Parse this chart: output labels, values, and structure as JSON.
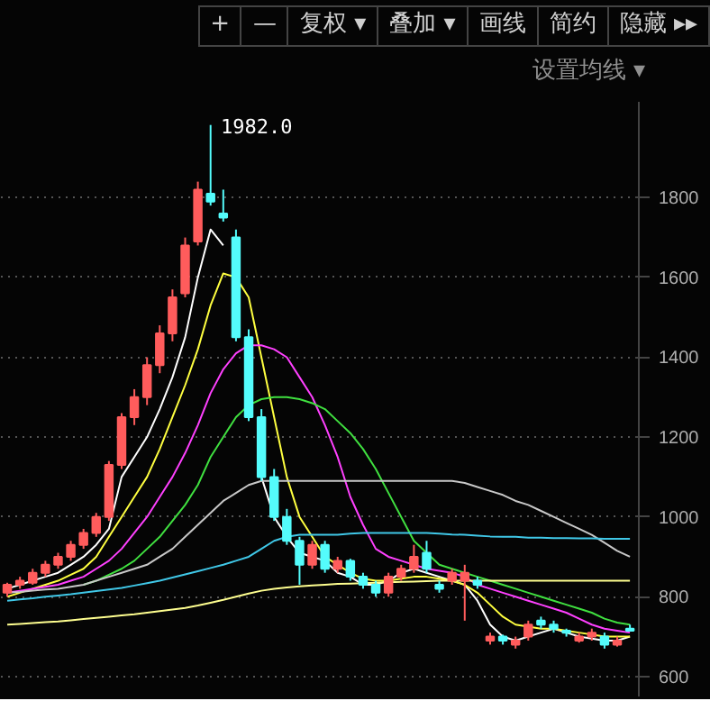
{
  "chart_data": {
    "type": "candlestick",
    "annotations": [
      "+",
      "—",
      "复权 ▾",
      "叠加 ▾",
      "画线",
      "简约",
      "隐藏 ▸▸",
      "设置均线 ▾",
      "1982.0"
    ],
    "categories": [
      null,
      null,
      null,
      null,
      null,
      null,
      null,
      null,
      null,
      null,
      null,
      null,
      null,
      null,
      null,
      null,
      null,
      null,
      null,
      null,
      null,
      null,
      null,
      null,
      null,
      null,
      null,
      null,
      null,
      null,
      null,
      null,
      null,
      null,
      null,
      null,
      null,
      null,
      null,
      null,
      null,
      null,
      null,
      null,
      null,
      null,
      null,
      null,
      null,
      null
    ],
    "ohlc": [
      [
        810,
        835,
        800,
        830
      ],
      [
        830,
        850,
        820,
        840
      ],
      [
        835,
        870,
        830,
        860
      ],
      [
        860,
        890,
        850,
        880
      ],
      [
        880,
        910,
        870,
        900
      ],
      [
        900,
        940,
        890,
        930
      ],
      [
        930,
        970,
        920,
        960
      ],
      [
        960,
        1010,
        950,
        1000
      ],
      [
        1000,
        1140,
        990,
        1130
      ],
      [
        1130,
        1260,
        1120,
        1250
      ],
      [
        1250,
        1320,
        1230,
        1300
      ],
      [
        1300,
        1400,
        1280,
        1380
      ],
      [
        1380,
        1480,
        1360,
        1460
      ],
      [
        1460,
        1570,
        1440,
        1550
      ],
      [
        1560,
        1700,
        1550,
        1680
      ],
      [
        1690,
        1840,
        1680,
        1820
      ],
      [
        1810,
        1982,
        1780,
        1790
      ],
      [
        1760,
        1820,
        1740,
        1750
      ],
      [
        1700,
        1720,
        1440,
        1450
      ],
      [
        1450,
        1470,
        1240,
        1250
      ],
      [
        1250,
        1270,
        1090,
        1100
      ],
      [
        1100,
        1120,
        990,
        1000
      ],
      [
        1000,
        1020,
        930,
        940
      ],
      [
        940,
        950,
        830,
        880
      ],
      [
        880,
        940,
        870,
        930
      ],
      [
        930,
        940,
        860,
        870
      ],
      [
        870,
        900,
        860,
        890
      ],
      [
        890,
        895,
        840,
        850
      ],
      [
        850,
        860,
        820,
        830
      ],
      [
        830,
        840,
        800,
        810
      ],
      [
        810,
        860,
        800,
        850
      ],
      [
        850,
        880,
        840,
        870
      ],
      [
        870,
        930,
        860,
        900
      ],
      [
        910,
        940,
        860,
        870
      ],
      [
        830,
        840,
        810,
        820
      ],
      [
        840,
        870,
        830,
        860
      ],
      [
        840,
        880,
        740,
        860
      ],
      [
        840,
        850,
        820,
        830
      ],
      [
        690,
        710,
        680,
        700
      ],
      [
        700,
        705,
        680,
        690
      ],
      [
        680,
        700,
        670,
        690
      ],
      [
        700,
        740,
        690,
        730
      ],
      [
        740,
        750,
        720,
        730
      ],
      [
        730,
        740,
        710,
        720
      ],
      [
        715,
        720,
        700,
        710
      ],
      [
        690,
        710,
        685,
        700
      ],
      [
        700,
        720,
        690,
        710
      ],
      [
        700,
        710,
        670,
        680
      ],
      [
        680,
        700,
        675,
        690
      ],
      [
        720,
        730,
        715,
        715
      ]
    ],
    "colors": [
      "#ff5c5c",
      "#ff5c5c",
      "#ff5c5c",
      "#ff5c5c",
      "#ff5c5c",
      "#ff5c5c",
      "#ff5c5c",
      "#ff5c5c",
      "#ff5c5c",
      "#ff5c5c",
      "#ff5c5c",
      "#ff5c5c",
      "#ff5c5c",
      "#ff5c5c",
      "#ff5c5c",
      "#ff5c5c",
      "#54fcfc",
      "#54fcfc",
      "#54fcfc",
      "#54fcfc",
      "#54fcfc",
      "#54fcfc",
      "#54fcfc",
      "#54fcfc",
      "#ff5c5c",
      "#54fcfc",
      "#ff5c5c",
      "#54fcfc",
      "#54fcfc",
      "#54fcfc",
      "#ff5c5c",
      "#ff5c5c",
      "#ff5c5c",
      "#54fcfc",
      "#54fcfc",
      "#ff5c5c",
      "#ff5c5c",
      "#54fcfc",
      "#ff5c5c",
      "#54fcfc",
      "#ff5c5c",
      "#ff5c5c",
      "#54fcfc",
      "#54fcfc",
      "#54fcfc",
      "#ff5c5c",
      "#ff5c5c",
      "#54fcfc",
      "#ff5c5c",
      "#54fcfc"
    ],
    "series": [
      {
        "type": "line",
        "color": "#ffffff",
        "values": [
          820,
          830,
          840,
          850,
          860,
          880,
          900,
          930,
          970,
          1100,
          1150,
          1200,
          1270,
          1350,
          1450,
          1600,
          1720,
          1680,
          null,
          null,
          1100,
          1000,
          950,
          910,
          900,
          890,
          860,
          850,
          830,
          830,
          840,
          860,
          870,
          860,
          850,
          840,
          830,
          790,
          730,
          700,
          690,
          700,
          710,
          720,
          710,
          700,
          695,
          690,
          690,
          700
        ]
      },
      {
        "type": "line",
        "color": "#ffff40",
        "values": [
          800,
          810,
          820,
          830,
          840,
          855,
          870,
          900,
          950,
          1000,
          1050,
          1100,
          1170,
          1250,
          1330,
          1420,
          1530,
          1610,
          1600,
          1550,
          1400,
          1250,
          1100,
          1000,
          950,
          900,
          880,
          860,
          845,
          840,
          840,
          845,
          850,
          850,
          845,
          840,
          830,
          810,
          780,
          750,
          730,
          725,
          720,
          720,
          715,
          710,
          705,
          700,
          700,
          700
        ]
      },
      {
        "type": "line",
        "color": "#ff40ff",
        "values": [
          810,
          815,
          820,
          825,
          830,
          840,
          850,
          870,
          890,
          920,
          960,
          1000,
          1050,
          1100,
          1160,
          1230,
          1310,
          1370,
          1410,
          1430,
          1430,
          1420,
          1400,
          1350,
          1300,
          1230,
          1150,
          1050,
          980,
          920,
          900,
          890,
          880,
          870,
          865,
          860,
          850,
          830,
          820,
          810,
          800,
          790,
          780,
          770,
          760,
          745,
          730,
          720,
          715,
          710
        ]
      },
      {
        "type": "line",
        "color": "#40e040",
        "values": [
          null,
          null,
          null,
          null,
          null,
          null,
          830,
          840,
          855,
          870,
          890,
          920,
          950,
          990,
          1030,
          1080,
          1150,
          1200,
          1250,
          1280,
          1295,
          1300,
          1300,
          1295,
          1285,
          1270,
          1240,
          1210,
          1170,
          1120,
          1060,
          1000,
          940,
          910,
          880,
          870,
          860,
          850,
          840,
          830,
          820,
          810,
          800,
          790,
          780,
          770,
          760,
          745,
          735,
          730
        ]
      },
      {
        "type": "line",
        "color": "#c8c8c8",
        "values": [
          810,
          812,
          815,
          818,
          820,
          825,
          830,
          840,
          850,
          860,
          870,
          880,
          900,
          920,
          950,
          980,
          1010,
          1040,
          1060,
          1080,
          1090,
          1090,
          1090,
          1090,
          1090,
          1090,
          1090,
          1090,
          1090,
          1090,
          1090,
          1090,
          1090,
          1090,
          1090,
          1090,
          1085,
          1075,
          1065,
          1055,
          1040,
          1030,
          1015,
          1000,
          985,
          970,
          955,
          935,
          915,
          900
        ]
      },
      {
        "type": "line",
        "color": "#40c8e8",
        "values": [
          790,
          793,
          796,
          800,
          803,
          806,
          810,
          814,
          818,
          822,
          828,
          834,
          840,
          848,
          856,
          864,
          872,
          880,
          890,
          900,
          920,
          940,
          950,
          955,
          955,
          955,
          955,
          958,
          960,
          960,
          960,
          960,
          960,
          960,
          958,
          956,
          955,
          953,
          951,
          950,
          950,
          948,
          948,
          947,
          947,
          946,
          946,
          945,
          945,
          945
        ]
      },
      {
        "type": "line",
        "color": "#ffff90",
        "values": [
          730,
          732,
          734,
          736,
          738,
          741,
          744,
          747,
          750,
          753,
          756,
          760,
          764,
          768,
          772,
          778,
          785,
          792,
          800,
          808,
          815,
          820,
          823,
          826,
          828,
          830,
          832,
          833,
          834,
          835,
          836,
          837,
          838,
          839,
          840,
          840,
          840,
          840,
          840,
          840,
          840,
          840,
          840,
          840,
          840,
          840,
          840,
          840,
          840,
          840
        ]
      }
    ],
    "ylim": [
      550,
      2040
    ],
    "yticks": [
      600,
      800,
      1000,
      1200,
      1400,
      1600,
      1800
    ],
    "grid": "y",
    "tick_labels": "y"
  }
}
